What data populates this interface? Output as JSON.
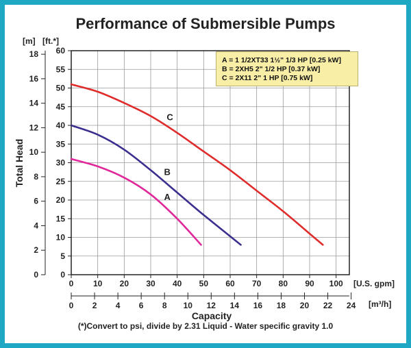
{
  "chart_data": {
    "type": "line",
    "title": "Performance of Submersible Pumps",
    "ylabel": "Total Head",
    "xlabel": "Capacity",
    "y_units_left": "[m]",
    "y_units_right": "[ft.*]",
    "x_units_top": "[U.S. gpm]",
    "x_units_bottom": "[m³/h]",
    "xlim": [
      0,
      105
    ],
    "ylim_ft": [
      0,
      60
    ],
    "x_ticks_gpm": [
      0,
      10,
      20,
      30,
      40,
      50,
      60,
      70,
      80,
      90,
      100
    ],
    "x_ticks_m3h": [
      0,
      2,
      4,
      6,
      8,
      10,
      12,
      14,
      16,
      18,
      20,
      22,
      24
    ],
    "y_ticks_ft": [
      0,
      5,
      10,
      15,
      20,
      25,
      30,
      35,
      40,
      45,
      50,
      55,
      60
    ],
    "y_ticks_m": [
      0,
      2,
      4,
      6,
      8,
      10,
      12,
      14,
      16,
      18
    ],
    "grid": true,
    "series": [
      {
        "name": "A",
        "color": "#e0289a",
        "points": [
          [
            0,
            31
          ],
          [
            10,
            29
          ],
          [
            20,
            26
          ],
          [
            30,
            21.5
          ],
          [
            40,
            15
          ],
          [
            49,
            8
          ]
        ]
      },
      {
        "name": "B",
        "color": "#3a2f8f",
        "points": [
          [
            0,
            40
          ],
          [
            10,
            37.5
          ],
          [
            20,
            33.5
          ],
          [
            30,
            28
          ],
          [
            40,
            22
          ],
          [
            50,
            16
          ],
          [
            64,
            8
          ]
        ]
      },
      {
        "name": "C",
        "color": "#e02b2b",
        "points": [
          [
            0,
            51
          ],
          [
            10,
            49
          ],
          [
            20,
            46
          ],
          [
            30,
            42.5
          ],
          [
            40,
            38
          ],
          [
            50,
            33
          ],
          [
            60,
            28
          ],
          [
            70,
            22.5
          ],
          [
            80,
            17
          ],
          [
            90,
            11
          ],
          [
            95,
            8
          ]
        ]
      }
    ],
    "legend": {
      "placement": "top-right",
      "entries": [
        "A = 1 1/2XT33 1½\" 1/3 HP [0.25 kW]",
        "B = 2XH5 2\" 1/2 HP [0.37 kW]",
        "C = 2X11 2\" 1 HP [0.75 kW]"
      ]
    },
    "footnote": "(*)Convert to psi, divide by 2.31     Liquid - Water specific gravity 1.0"
  }
}
